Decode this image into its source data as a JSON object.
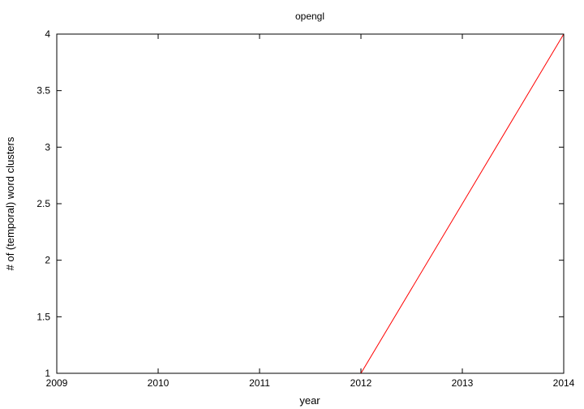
{
  "chart_data": {
    "type": "line",
    "title": "opengl",
    "xlabel": "year",
    "ylabel": "# of (temporal) word clusters",
    "xlim": [
      2009,
      2014
    ],
    "ylim": [
      1,
      4
    ],
    "x_ticks": [
      "2009",
      "2010",
      "2011",
      "2012",
      "2013",
      "2014"
    ],
    "y_ticks": [
      "1",
      "1.5",
      "2",
      "2.5",
      "3",
      "3.5",
      "4"
    ],
    "grid": false,
    "series": [
      {
        "color": "#ff0000",
        "x": [
          2009,
          2010,
          2011,
          2012,
          2013,
          2014
        ],
        "y": [
          1,
          1,
          1,
          1,
          2.5,
          4
        ]
      }
    ]
  }
}
